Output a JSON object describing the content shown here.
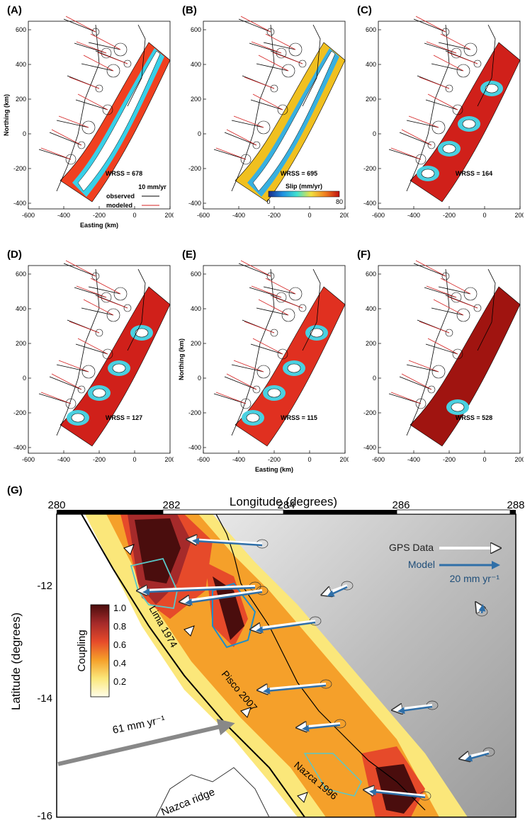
{
  "panels": [
    {
      "label": "(A)",
      "wrss": "WRSS = 678",
      "style": "edges"
    },
    {
      "label": "(B)",
      "wrss": "WRSS = 695",
      "style": "patchy"
    },
    {
      "label": "(C)",
      "wrss": "WRSS = 164",
      "style": "red"
    },
    {
      "label": "(D)",
      "wrss": "WRSS = 127",
      "style": "red"
    },
    {
      "label": "(E)",
      "wrss": "WRSS = 115",
      "style": "mixed"
    },
    {
      "label": "(F)",
      "wrss": "WRSS = 528",
      "style": "dark"
    }
  ],
  "axes": {
    "northing_label": "Northing (km)",
    "easting_label": "Easting (km)",
    "x_ticks": [
      "-600",
      "-400",
      "-200",
      "0",
      "200"
    ],
    "y_ticks": [
      "600",
      "400",
      "200",
      "0",
      "-200",
      "-400"
    ]
  },
  "legend_a": {
    "scale": "10 mm/yr",
    "observed": "observed",
    "modeled": "modeled"
  },
  "colorbar_b": {
    "title": "Slip (mm/yr)",
    "min": "0",
    "max": "80"
  },
  "panel_g": {
    "label": "(G)",
    "xlabel": "Longitude (degrees)",
    "ylabel": "Latitude (degrees)",
    "x_ticks": [
      "280",
      "282",
      "284",
      "286",
      "288"
    ],
    "y_ticks": [
      "-12",
      "-14",
      "-16"
    ],
    "legend_gps": "GPS Data",
    "legend_model": "Model",
    "legend_scale": "20 mm yr⁻¹",
    "colorbar_title": "Coupling",
    "colorbar_ticks": [
      "1.0",
      "0.8",
      "0.6",
      "0.4",
      "0.2"
    ],
    "plate_rate": "61 mm yr⁻¹",
    "ridge": "Nazca ridge",
    "eq_lima": "Lima 1974",
    "eq_pisco": "Pisco 2007",
    "eq_nazca": "Nazca 1996"
  },
  "colors": {
    "observed": "#000000",
    "modeled": "#d42020",
    "gps": "#ffffff",
    "model": "#2f6fa8"
  }
}
